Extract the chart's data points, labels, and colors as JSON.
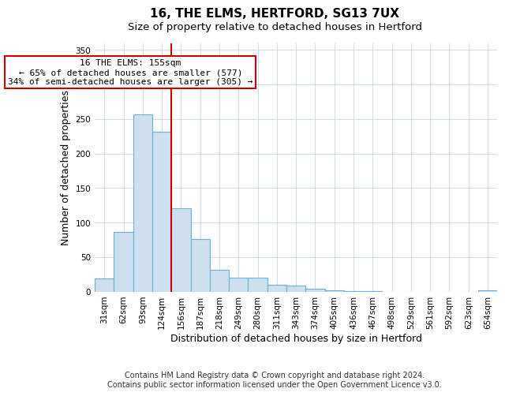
{
  "title": "16, THE ELMS, HERTFORD, SG13 7UX",
  "subtitle": "Size of property relative to detached houses in Hertford",
  "xlabel": "Distribution of detached houses by size in Hertford",
  "ylabel": "Number of detached properties",
  "bar_labels": [
    "31sqm",
    "62sqm",
    "93sqm",
    "124sqm",
    "156sqm",
    "187sqm",
    "218sqm",
    "249sqm",
    "280sqm",
    "311sqm",
    "343sqm",
    "374sqm",
    "405sqm",
    "436sqm",
    "467sqm",
    "498sqm",
    "529sqm",
    "561sqm",
    "592sqm",
    "623sqm",
    "654sqm"
  ],
  "bar_values": [
    19,
    86,
    257,
    231,
    121,
    76,
    32,
    20,
    20,
    10,
    9,
    4,
    2,
    1,
    1,
    0,
    0,
    0,
    0,
    0,
    2
  ],
  "bar_color": "#cde0f0",
  "bar_edge_color": "#6aaed6",
  "property_line_label": "16 THE ELMS: 155sqm",
  "annotation_line1": "← 65% of detached houses are smaller (577)",
  "annotation_line2": "34% of semi-detached houses are larger (305) →",
  "annotation_box_color": "#ffffff",
  "annotation_box_edge_color": "#cc0000",
  "vline_color": "#cc0000",
  "vline_x_index": 3.5,
  "ylim": [
    0,
    360
  ],
  "yticks": [
    0,
    50,
    100,
    150,
    200,
    250,
    300,
    350
  ],
  "footer1": "Contains HM Land Registry data © Crown copyright and database right 2024.",
  "footer2": "Contains public sector information licensed under the Open Government Licence v3.0.",
  "title_fontsize": 11,
  "subtitle_fontsize": 9.5,
  "axis_label_fontsize": 9,
  "tick_fontsize": 7.5,
  "annotation_fontsize": 8,
  "footer_fontsize": 7
}
